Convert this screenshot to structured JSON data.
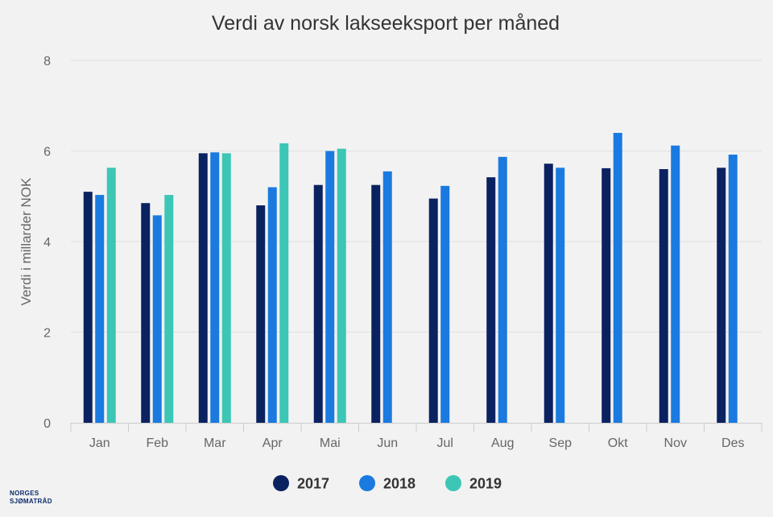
{
  "chart_data": {
    "type": "bar",
    "title": "Verdi av norsk lakseeksport per måned",
    "ylabel": "Verdi i millarder NOK",
    "xlabel": "",
    "ylim": [
      0,
      8
    ],
    "yticks": [
      0,
      2,
      4,
      6,
      8
    ],
    "grid": true,
    "legend_position": "bottom-center",
    "categories": [
      "Jan",
      "Feb",
      "Mar",
      "Apr",
      "Mai",
      "Jun",
      "Jul",
      "Aug",
      "Sep",
      "Okt",
      "Nov",
      "Des"
    ],
    "series": [
      {
        "name": "2017",
        "color": "#0b2260",
        "values": [
          5.1,
          4.85,
          5.95,
          4.8,
          5.25,
          5.25,
          4.95,
          5.42,
          5.72,
          5.62,
          5.6,
          5.63
        ]
      },
      {
        "name": "2018",
        "color": "#1a7ae0",
        "values": [
          5.03,
          4.58,
          5.97,
          5.2,
          6.0,
          5.55,
          5.23,
          5.87,
          5.63,
          6.4,
          6.12,
          5.92
        ]
      },
      {
        "name": "2019",
        "color": "#3cc6b6",
        "values": [
          5.63,
          5.03,
          5.95,
          6.17,
          6.05,
          null,
          null,
          null,
          null,
          null,
          null,
          null
        ]
      }
    ]
  },
  "brand": {
    "line1": "NORGES",
    "line2": "SJØMATRÅD"
  }
}
